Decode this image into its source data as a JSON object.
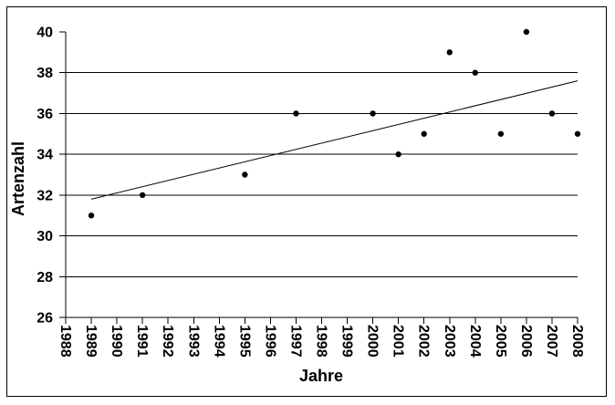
{
  "figure": {
    "background_color": "#ffffff",
    "frame_border_color": "#000000",
    "ink_color": "#000000"
  },
  "chart_data": {
    "type": "scatter",
    "title": "",
    "xlabel": "Jahre",
    "ylabel": "Artenzahl",
    "xlim": [
      1988,
      2008
    ],
    "ylim": [
      26,
      40
    ],
    "x_ticks": [
      1988,
      1989,
      1990,
      1991,
      1992,
      1993,
      1994,
      1995,
      1996,
      1997,
      1998,
      1999,
      2000,
      2001,
      2002,
      2003,
      2004,
      2005,
      2006,
      2007,
      2008
    ],
    "y_ticks": [
      26,
      28,
      30,
      32,
      34,
      36,
      38,
      40
    ],
    "gridlines_y": [
      28,
      30,
      32,
      34,
      36,
      38
    ],
    "grid": "horizontal-only",
    "legend": "none",
    "marker": "filled-circle",
    "marker_color": "#000000",
    "line_color": "#000000",
    "points": [
      {
        "x": 1989,
        "y": 31
      },
      {
        "x": 1991,
        "y": 32
      },
      {
        "x": 1995,
        "y": 33
      },
      {
        "x": 1997,
        "y": 36
      },
      {
        "x": 2000,
        "y": 36
      },
      {
        "x": 2001,
        "y": 34
      },
      {
        "x": 2002,
        "y": 35
      },
      {
        "x": 2003,
        "y": 39
      },
      {
        "x": 2004,
        "y": 38
      },
      {
        "x": 2005,
        "y": 35
      },
      {
        "x": 2006,
        "y": 40
      },
      {
        "x": 2007,
        "y": 36
      },
      {
        "x": 2008,
        "y": 35
      }
    ],
    "trendline": {
      "x1": 1989,
      "y1": 31.8,
      "x2": 2008,
      "y2": 37.6
    }
  }
}
